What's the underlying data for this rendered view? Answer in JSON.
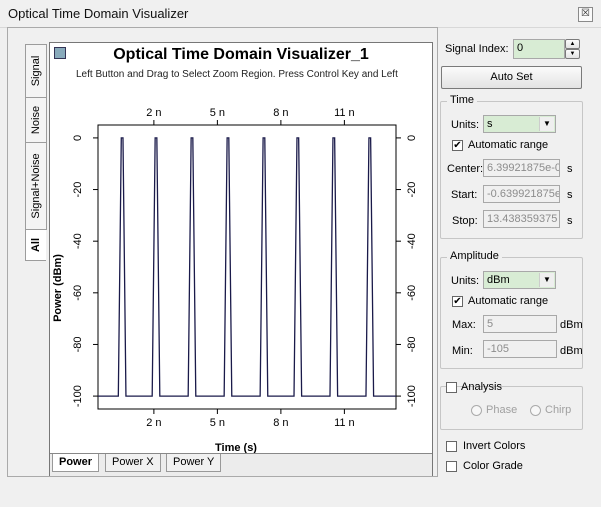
{
  "window": {
    "title": "Optical Time Domain Visualizer",
    "close_glyph": "☒"
  },
  "side_tabs": [
    {
      "label": "Signal"
    },
    {
      "label": "Noise"
    },
    {
      "label": "Signal+Noise"
    },
    {
      "label": "All"
    }
  ],
  "plot": {
    "title": "Optical Time Domain Visualizer_1",
    "subtitle": "Left Button and Drag to Select Zoom Region. Press Control Key and Left"
  },
  "bottom_tabs": [
    {
      "label": "Power"
    },
    {
      "label": "Power X"
    },
    {
      "label": "Power Y"
    }
  ],
  "chart_data": {
    "type": "line",
    "title": "",
    "xlabel": "Time (s)",
    "ylabel": "Power (dBm)",
    "x_ticks": [
      "2 n",
      "5 n",
      "8 n",
      "11 n"
    ],
    "x_tick_values": [
      2e-09,
      5e-09,
      8e-09,
      1.1e-08
    ],
    "y_ticks": [
      "0",
      "-20",
      "-40",
      "-60",
      "-80",
      "-100"
    ],
    "y_tick_values": [
      0,
      -20,
      -40,
      -60,
      -80,
      -100
    ],
    "xlim": [
      -6.39921875e-10,
      1.3438359375e-08
    ],
    "ylim": [
      -105,
      5
    ],
    "grid": true,
    "line_color": "#1a1a4a",
    "pulse_centers_ns": [
      0.5,
      2.1,
      3.8,
      5.5,
      7.2,
      8.8,
      10.5,
      12.2
    ],
    "peak_dbm": 0,
    "floor_dbm": -100
  },
  "panel": {
    "signal_index_label": "Signal Index:",
    "signal_index_value": "0",
    "auto_set_label": "Auto Set",
    "time": {
      "group_label": "Time",
      "units_label": "Units:",
      "units_value": "s",
      "auto_range_label": "Automatic range",
      "center_label": "Center:",
      "center_value": "6.39921875e-0",
      "center_unit": "s",
      "start_label": "Start:",
      "start_value": "-0.639921875e",
      "start_unit": "s",
      "stop_label": "Stop:",
      "stop_value": "13.438359375",
      "stop_unit": "s"
    },
    "amplitude": {
      "group_label": "Amplitude",
      "units_label": "Units:",
      "units_value": "dBm",
      "auto_range_label": "Automatic range",
      "max_label": "Max:",
      "max_value": "5",
      "max_unit": "dBm",
      "min_label": "Min:",
      "min_value": "-105",
      "min_unit": "dBm"
    },
    "analysis": {
      "label": "Analysis",
      "phase_label": "Phase",
      "chirp_label": "Chirp"
    },
    "invert_colors_label": "Invert Colors",
    "color_grade_label": "Color Grade",
    "check_glyph": "✔",
    "spin_up": "▲",
    "spin_down": "▼",
    "dropdown_glyph": "▼"
  }
}
